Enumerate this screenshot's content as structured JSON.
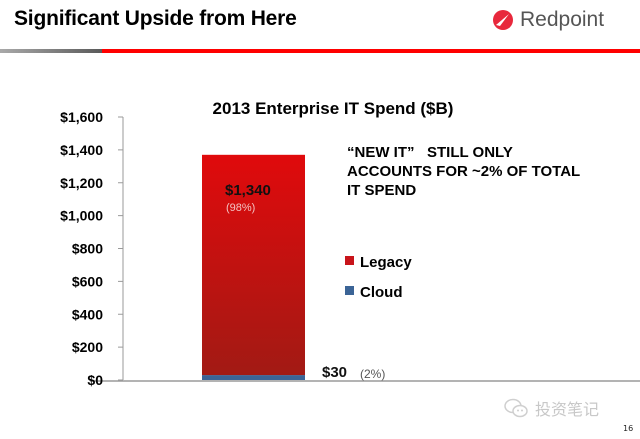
{
  "slide": {
    "title": "Significant Upside from Here",
    "logo": {
      "icon": "redpoint-logo-icon",
      "text": "Redpoint"
    },
    "callout_lines": [
      "“NEW IT”   STILL ONLY",
      "ACCOUNTS FOR ~2% OF TOTAL",
      "IT SPEND"
    ],
    "watermark": {
      "icon": "wechat-icon",
      "text": "投资笔记"
    },
    "page_number": "16",
    "colors": {
      "accent": "#ff0000",
      "legacy": "#c8141a",
      "cloud": "#3b6496",
      "logo_red": "#e8283c"
    }
  },
  "chart_data": {
    "type": "bar",
    "stacked": true,
    "title": "2013 Enterprise IT Spend ($B)",
    "xlabel": "",
    "ylabel": "",
    "categories": [
      "2013"
    ],
    "ylim": [
      0,
      1600
    ],
    "yticks": [
      0,
      200,
      400,
      600,
      800,
      1000,
      1200,
      1400,
      1600
    ],
    "ytick_labels": [
      "$0",
      "$200",
      "$400",
      "$600",
      "$800",
      "$1,000",
      "$1,200",
      "$1,400",
      "$1,600"
    ],
    "grid": false,
    "legend_position": "right",
    "series": [
      {
        "name": "Cloud",
        "values": [
          30
        ],
        "label": "$30",
        "pct_label": "(2%)",
        "color": "#3b6496"
      },
      {
        "name": "Legacy",
        "values": [
          1340
        ],
        "label": "$1,340",
        "pct_label": "(98%)",
        "color": "#c8141a"
      }
    ],
    "legend": [
      "Legacy",
      "Cloud"
    ]
  }
}
